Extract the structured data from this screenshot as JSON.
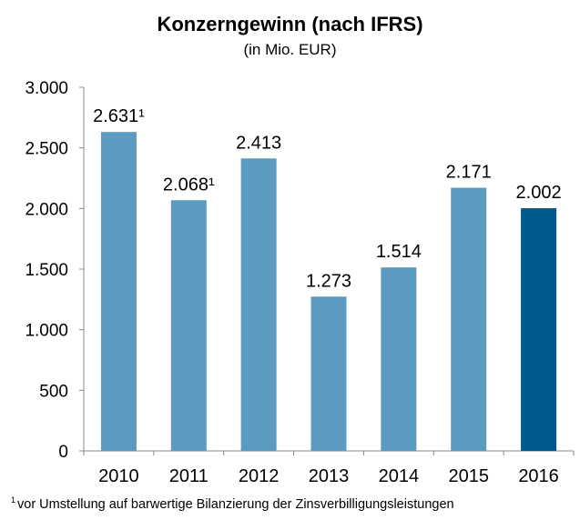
{
  "chart_data": {
    "type": "bar",
    "title": "Konzerngewinn (nach IFRS)",
    "subtitle": "(in Mio. EUR)",
    "categories": [
      "2010",
      "2011",
      "2012",
      "2013",
      "2014",
      "2015",
      "2016"
    ],
    "values": [
      2631,
      2068,
      2413,
      1273,
      1514,
      2171,
      2002
    ],
    "data_labels": [
      "2.631¹",
      "2.068¹",
      "2.413",
      "1.273",
      "1.514",
      "2.171",
      "2.002"
    ],
    "ylim": [
      0,
      3000
    ],
    "yticks": [
      0,
      500,
      1000,
      1500,
      2000,
      2500,
      3000
    ],
    "ytick_labels": [
      "0",
      "500",
      "1.000",
      "1.500",
      "2.000",
      "2.500",
      "3.000"
    ],
    "colors": {
      "default": "#5b9bc0",
      "highlight": "#005a8c"
    },
    "highlight_index": 6,
    "grid": false,
    "legend": "none"
  },
  "footnote": {
    "marker": "1",
    "text": "vor Umstellung  auf barwertige  Bilanzierung  der Zinsverbilligungsleistungen"
  }
}
